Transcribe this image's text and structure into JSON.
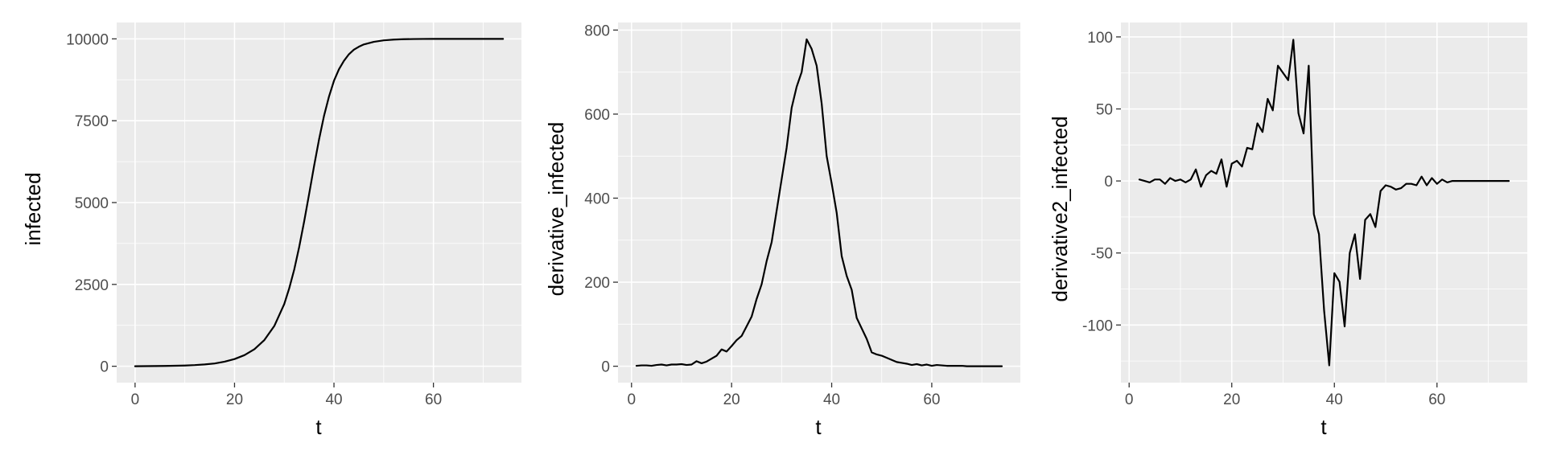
{
  "chart_data": [
    {
      "type": "line",
      "xlabel": "t",
      "ylabel": "infected",
      "xlim": [
        -3.7,
        77.7
      ],
      "ylim": [
        -500,
        10500
      ],
      "xticks": [
        0,
        20,
        40,
        60
      ],
      "xminor": [
        10,
        30,
        50,
        70
      ],
      "yticks": [
        0,
        2500,
        5000,
        7500,
        10000
      ],
      "ytick_labels": [
        "0",
        "2500",
        "5000",
        "7500",
        "10000"
      ],
      "yminor": [
        1250,
        3750,
        6250,
        8750
      ],
      "grid": true,
      "series": [
        {
          "x": [
            0,
            2,
            4,
            6,
            8,
            10,
            12,
            14,
            16,
            18,
            20,
            22,
            24,
            26,
            28,
            30,
            31,
            32,
            33,
            34,
            35,
            36,
            37,
            38,
            39,
            40,
            41,
            42,
            43,
            44,
            45,
            46,
            48,
            50,
            52,
            54,
            56,
            58,
            60,
            62,
            64,
            66,
            68,
            70,
            72,
            74
          ],
          "y": [
            1,
            3,
            6,
            10,
            15,
            22,
            35,
            55,
            85,
            140,
            220,
            340,
            520,
            800,
            1230,
            1900,
            2380,
            2950,
            3640,
            4420,
            5260,
            6120,
            6930,
            7650,
            8240,
            8720,
            9070,
            9330,
            9530,
            9670,
            9760,
            9830,
            9910,
            9955,
            9978,
            9990,
            9995,
            9998,
            9999,
            10000,
            10000,
            10000,
            10000,
            10000,
            10000,
            10000
          ]
        }
      ]
    },
    {
      "type": "line",
      "xlabel": "t",
      "ylabel": "derivative_infected",
      "xlim": [
        -2.7,
        77.7
      ],
      "ylim": [
        -39,
        818
      ],
      "xticks": [
        0,
        20,
        40,
        60
      ],
      "xminor": [
        10,
        30,
        50,
        70
      ],
      "yticks": [
        0,
        200,
        400,
        600,
        800
      ],
      "ytick_labels": [
        "0",
        "200",
        "400",
        "600",
        "800"
      ],
      "yminor": [
        100,
        300,
        500,
        700
      ],
      "grid": true,
      "series": [
        {
          "x": [
            1,
            2,
            3,
            4,
            5,
            6,
            7,
            8,
            9,
            10,
            11,
            12,
            13,
            14,
            15,
            16,
            17,
            18,
            19,
            20,
            21,
            22,
            23,
            24,
            25,
            26,
            27,
            28,
            29,
            30,
            31,
            32,
            33,
            34,
            35,
            36,
            37,
            38,
            39,
            40,
            41,
            42,
            43,
            44,
            45,
            46,
            47,
            48,
            49,
            50,
            51,
            52,
            53,
            54,
            55,
            56,
            57,
            58,
            59,
            60,
            61,
            62,
            63,
            64,
            65,
            66,
            67,
            68,
            69,
            70,
            71,
            72,
            73,
            74
          ],
          "y": [
            1,
            2,
            2,
            1,
            3,
            4,
            2,
            4,
            4,
            5,
            3,
            4,
            12,
            7,
            11,
            18,
            25,
            40,
            35,
            48,
            62,
            72,
            95,
            118,
            160,
            195,
            250,
            295,
            370,
            445,
            520,
            615,
            665,
            700,
            778,
            755,
            715,
            625,
            500,
            435,
            365,
            262,
            215,
            182,
            115,
            90,
            65,
            33,
            28,
            25,
            20,
            15,
            10,
            8,
            6,
            3,
            5,
            2,
            4,
            1,
            3,
            2,
            1,
            1,
            1,
            1,
            0,
            0,
            0,
            0,
            0,
            0,
            0,
            0
          ]
        }
      ]
    },
    {
      "type": "line",
      "xlabel": "t",
      "ylabel": "derivative2_infected",
      "xlim": [
        -1.6,
        77.6
      ],
      "ylim": [
        -140,
        110
      ],
      "xticks": [
        0,
        20,
        40,
        60
      ],
      "xminor": [
        10,
        30,
        50,
        70
      ],
      "yticks": [
        -100,
        -50,
        0,
        50,
        100
      ],
      "ytick_labels": [
        "-100",
        "-50",
        "0",
        "50",
        "100"
      ],
      "yminor": [
        -125,
        -75,
        -25,
        25,
        75
      ],
      "grid": true,
      "series": [
        {
          "x": [
            2,
            3,
            4,
            5,
            6,
            7,
            8,
            9,
            10,
            11,
            12,
            13,
            14,
            15,
            16,
            17,
            18,
            19,
            20,
            21,
            22,
            23,
            24,
            25,
            26,
            27,
            28,
            29,
            30,
            31,
            32,
            33,
            34,
            35,
            36,
            37,
            38,
            39,
            40,
            41,
            42,
            43,
            44,
            45,
            46,
            47,
            48,
            49,
            50,
            51,
            52,
            53,
            54,
            55,
            56,
            57,
            58,
            59,
            60,
            61,
            62,
            63,
            64,
            65,
            66,
            67,
            68,
            69,
            70,
            71,
            72,
            73,
            74
          ],
          "y": [
            1,
            0,
            -1,
            1,
            1,
            -2,
            2,
            0,
            1,
            -1,
            1,
            8,
            -4,
            4,
            7,
            5,
            15,
            -4,
            12,
            14,
            10,
            23,
            22,
            40,
            34,
            57,
            49,
            80,
            75,
            70,
            98,
            47,
            33,
            80,
            -23,
            -37,
            -90,
            -128,
            -64,
            -70,
            -101,
            -50,
            -37,
            -68,
            -27,
            -23,
            -32,
            -7,
            -3,
            -4,
            -6,
            -5,
            -2,
            -2,
            -3,
            3,
            -3,
            2,
            -2,
            1,
            -1,
            0,
            0,
            0,
            0,
            0,
            0,
            0,
            0,
            0,
            0,
            0,
            0
          ]
        }
      ]
    }
  ]
}
